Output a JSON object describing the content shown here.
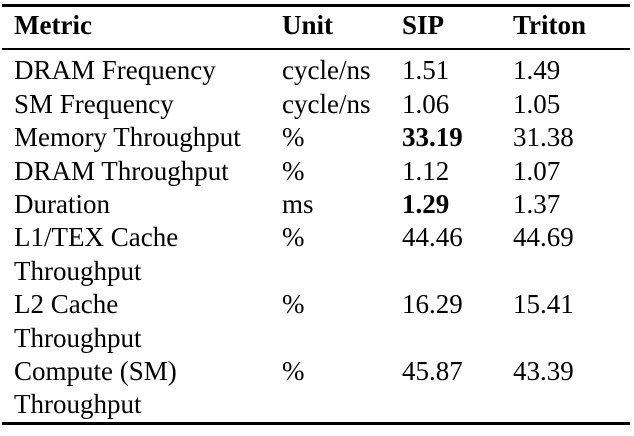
{
  "page": {
    "background_color": "#ffffff",
    "text_color": "#000000",
    "rule_color": "#000000"
  },
  "table": {
    "headers": [
      "Metric",
      "Unit",
      "SIP",
      "Triton"
    ],
    "rows": [
      {
        "metric": "DRAM Frequency",
        "unit": "cycle/ns",
        "sip": "1.51",
        "triton": "1.49",
        "sip_bold": false,
        "triton_bold": false
      },
      {
        "metric": "SM Frequency",
        "unit": "cycle/ns",
        "sip": "1.06",
        "triton": "1.05",
        "sip_bold": false,
        "triton_bold": false
      },
      {
        "metric": "Memory Throughput",
        "unit": "%",
        "sip": "33.19",
        "triton": "31.38",
        "sip_bold": true,
        "triton_bold": false
      },
      {
        "metric": "DRAM Throughput",
        "unit": "%",
        "sip": "1.12",
        "triton": "1.07",
        "sip_bold": false,
        "triton_bold": false
      },
      {
        "metric": "Duration",
        "unit": "ms",
        "sip": "1.29",
        "triton": "1.37",
        "sip_bold": true,
        "triton_bold": false
      },
      {
        "metric": "L1/TEX Cache\nThroughput",
        "unit": "%",
        "sip": "44.46",
        "triton": "44.69",
        "sip_bold": false,
        "triton_bold": false
      },
      {
        "metric": "L2 Cache\nThroughput",
        "unit": "%",
        "sip": "16.29",
        "triton": "15.41",
        "sip_bold": false,
        "triton_bold": false
      },
      {
        "metric": "Compute (SM)\nThroughput",
        "unit": "%",
        "sip": "45.87",
        "triton": "43.39",
        "sip_bold": false,
        "triton_bold": false
      }
    ]
  }
}
